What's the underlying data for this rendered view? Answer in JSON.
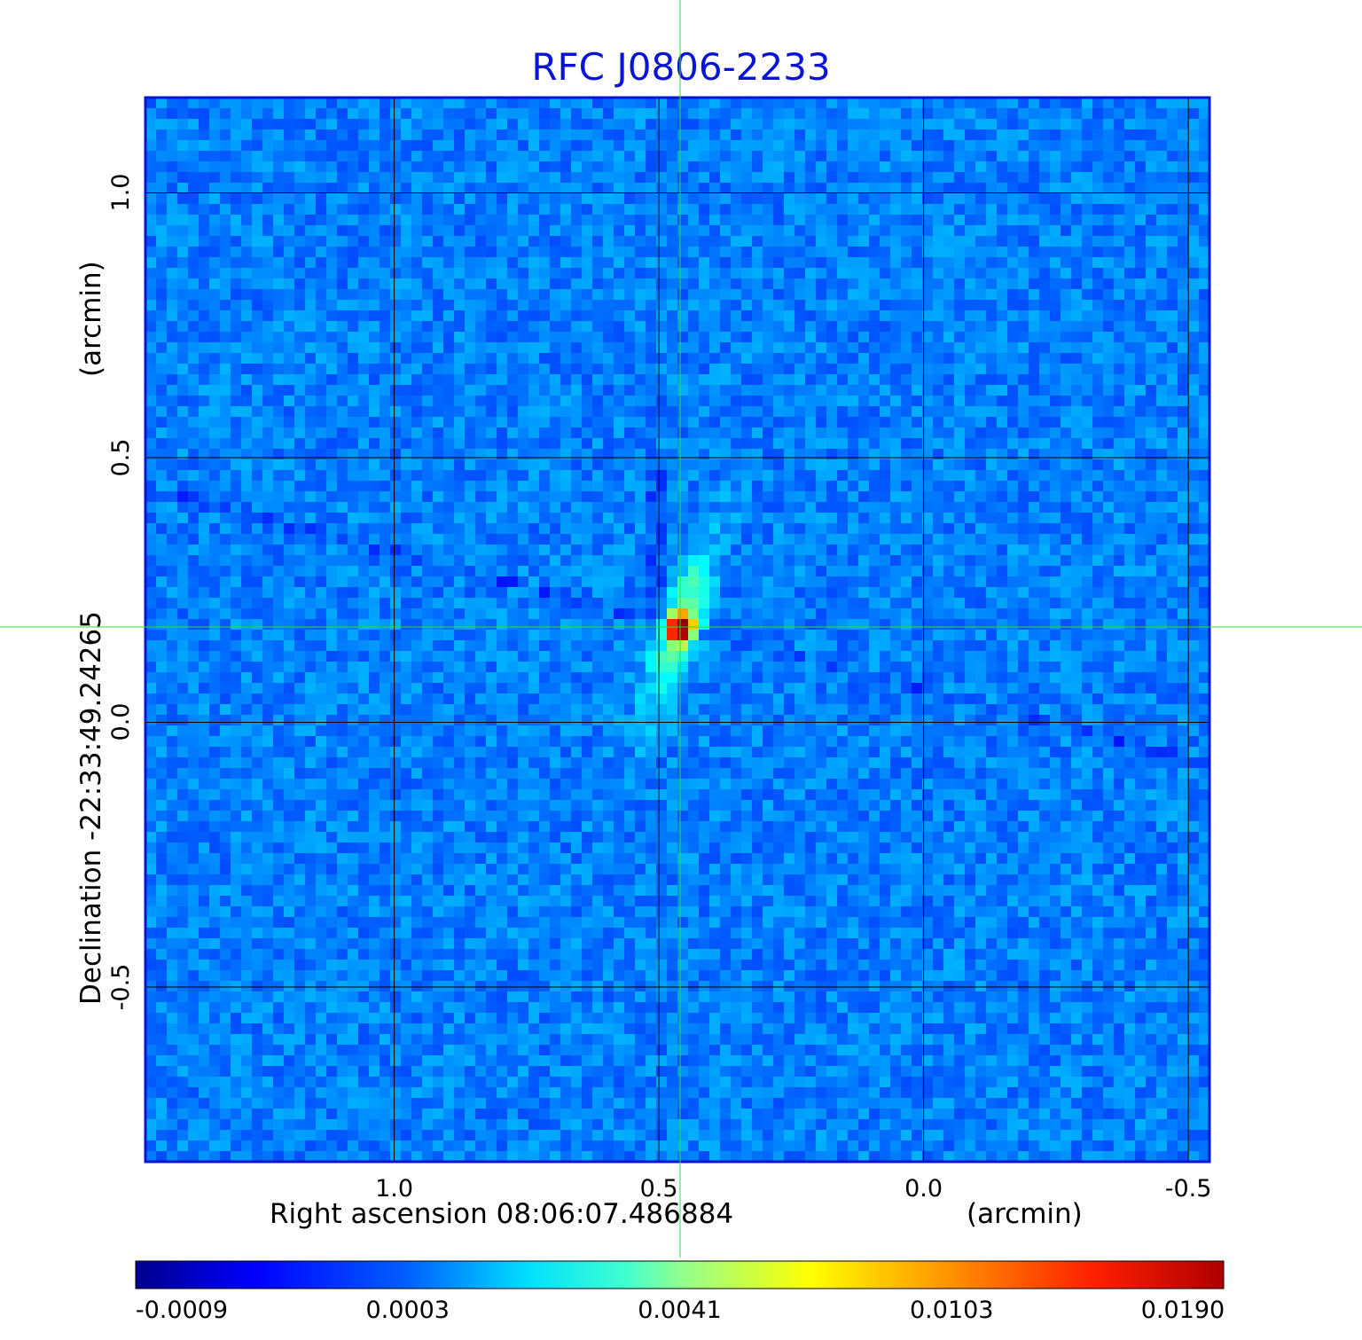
{
  "chart_data": {
    "type": "heatmap",
    "title": "RFC J0806-2233",
    "xlabel": "Right ascension  08:06:07.486884",
    "xunit": "(arcmin)",
    "ylabel": "Declination  -22:33:49.24265",
    "yunit": "(arcmin)",
    "xlim": [
      1.47,
      -0.54
    ],
    "ylim": [
      -0.83,
      1.18
    ],
    "x_ticks": [
      "1.0",
      "0.5",
      "0.0",
      "-0.5"
    ],
    "x_tick_values": [
      1.0,
      0.5,
      0.0,
      -0.5
    ],
    "y_ticks": [
      "1.0",
      "0.5",
      "0.0",
      "-0.5"
    ],
    "y_tick_values": [
      1.0,
      0.5,
      0.0,
      -0.5
    ],
    "grid": true,
    "crosshair": {
      "x": 0.46,
      "y": 0.18
    },
    "peak": {
      "x": 0.46,
      "y": 0.18,
      "value": 0.019
    },
    "colorbar": {
      "ticks": [
        "-0.0009",
        "0.0003",
        "0.0041",
        "0.0103",
        "0.0190"
      ],
      "colormap": "jet"
    },
    "colors": {
      "title": "#0a14d2",
      "frame": "#0a14d2",
      "grid": "#000000",
      "crosshair": "#33dd33"
    }
  }
}
